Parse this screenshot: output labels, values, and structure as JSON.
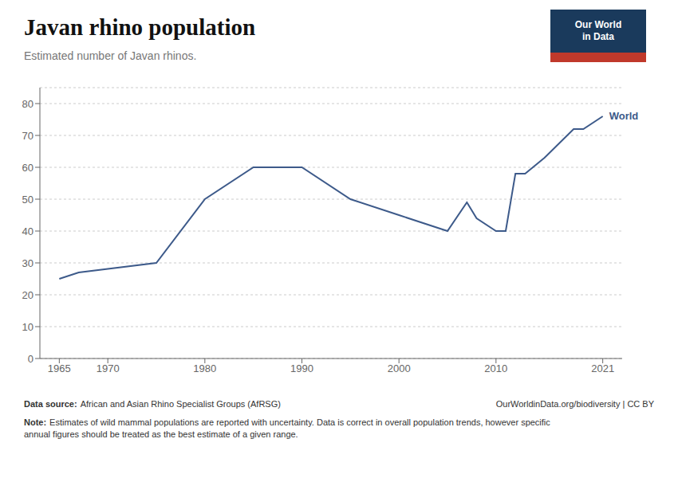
{
  "chart_data": {
    "type": "line",
    "title": "Javan rhino population",
    "subtitle": "Estimated number of Javan rhinos.",
    "x": [
      1965,
      1967,
      1975,
      1980,
      1985,
      1990,
      1995,
      2000,
      2005,
      2007,
      2008,
      2010,
      2011,
      2012,
      2013,
      2015,
      2018,
      2019,
      2021
    ],
    "values": [
      25,
      27,
      30,
      50,
      60,
      60,
      50,
      45,
      40,
      49,
      44,
      40,
      40,
      58,
      58,
      63,
      72,
      72,
      76
    ],
    "color": "#3d5a8a",
    "xlim": [
      1963,
      2023
    ],
    "ylim": [
      0,
      85
    ],
    "xticks": [
      1965,
      1970,
      1980,
      1990,
      2000,
      2010,
      2021
    ],
    "yticks": [
      0,
      10,
      20,
      30,
      40,
      50,
      60,
      70,
      80
    ],
    "grid": true,
    "annotation": "World",
    "source_label": "Data source:",
    "source": "African and Asian Rhino Specialist Groups (AfRSG)",
    "credit": "OurWorldinData.org/biodiversity | CC BY",
    "note_label": "Note:",
    "note": "Estimates of wild mammal populations are reported with uncertainty. Data is correct in overall population trends, however specific\nannual figures should be treated as the best estimate of a given range.",
    "logo": [
      "Our World",
      "in Data"
    ]
  }
}
